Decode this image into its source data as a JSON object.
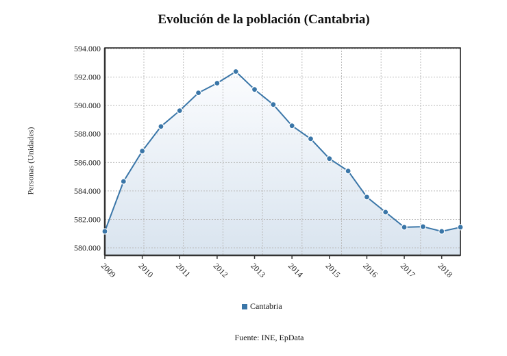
{
  "chart_data": {
    "type": "area",
    "title": "Evolución de la población (Cantabria)",
    "ylabel": "Personas (Unidades)",
    "xlabel": "",
    "source": "Fuente: INE, EpData",
    "ylim": [
      579.5,
      594
    ],
    "y_ticks": [
      "594.000",
      "592.000",
      "590.000",
      "588.000",
      "586.000",
      "584.000",
      "582.000",
      "580.000"
    ],
    "y_tick_values": [
      594,
      592,
      590,
      588,
      586,
      584,
      582,
      580
    ],
    "x_ticks": [
      "2009",
      "2010",
      "2011",
      "2012",
      "2013",
      "2014",
      "2015",
      "2016",
      "2017",
      "2018"
    ],
    "grid": true,
    "legend_position": "bottom",
    "color": "#3a76a8",
    "series": [
      {
        "name": "Cantabria",
        "x": [
          2009,
          2009.5,
          2010,
          2010.5,
          2011,
          2011.5,
          2012,
          2012.5,
          2013,
          2013.5,
          2014,
          2014.5,
          2015,
          2015.5,
          2016,
          2016.5,
          2017,
          2017.5,
          2018,
          2018.5
        ],
        "values": [
          581.16,
          584.67,
          586.8,
          588.53,
          589.64,
          590.89,
          591.57,
          592.39,
          591.13,
          590.07,
          588.58,
          587.66,
          586.27,
          585.4,
          583.57,
          582.51,
          581.45,
          581.49,
          581.16,
          581.45
        ]
      }
    ]
  }
}
